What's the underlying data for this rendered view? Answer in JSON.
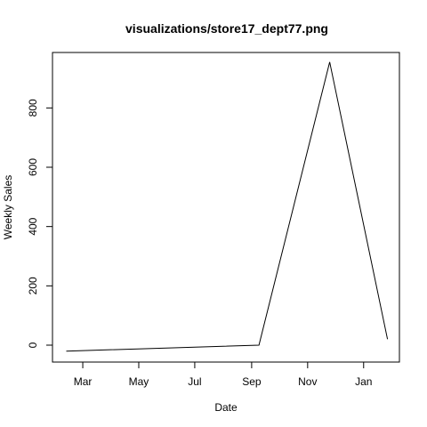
{
  "chart_data": {
    "type": "line",
    "title": "visualizations/store17_dept77.png",
    "xlabel": "Date",
    "ylabel": "Weekly Sales",
    "x_ticks": [
      "Mar",
      "May",
      "Jul",
      "Sep",
      "Nov",
      "Jan"
    ],
    "y_ticks": [
      "0",
      "200",
      "400",
      "600",
      "800"
    ],
    "series": [
      {
        "x": [
          "2011-02-11",
          "2011-09-09",
          "2011-11-25",
          "2012-01-27"
        ],
        "y": [
          -20,
          0,
          955,
          20
        ]
      }
    ],
    "xlim": [
      "2011-01-27",
      "2012-02-09"
    ],
    "ylim": [
      -57,
      987
    ],
    "grid": false,
    "line_color": "#000000"
  }
}
